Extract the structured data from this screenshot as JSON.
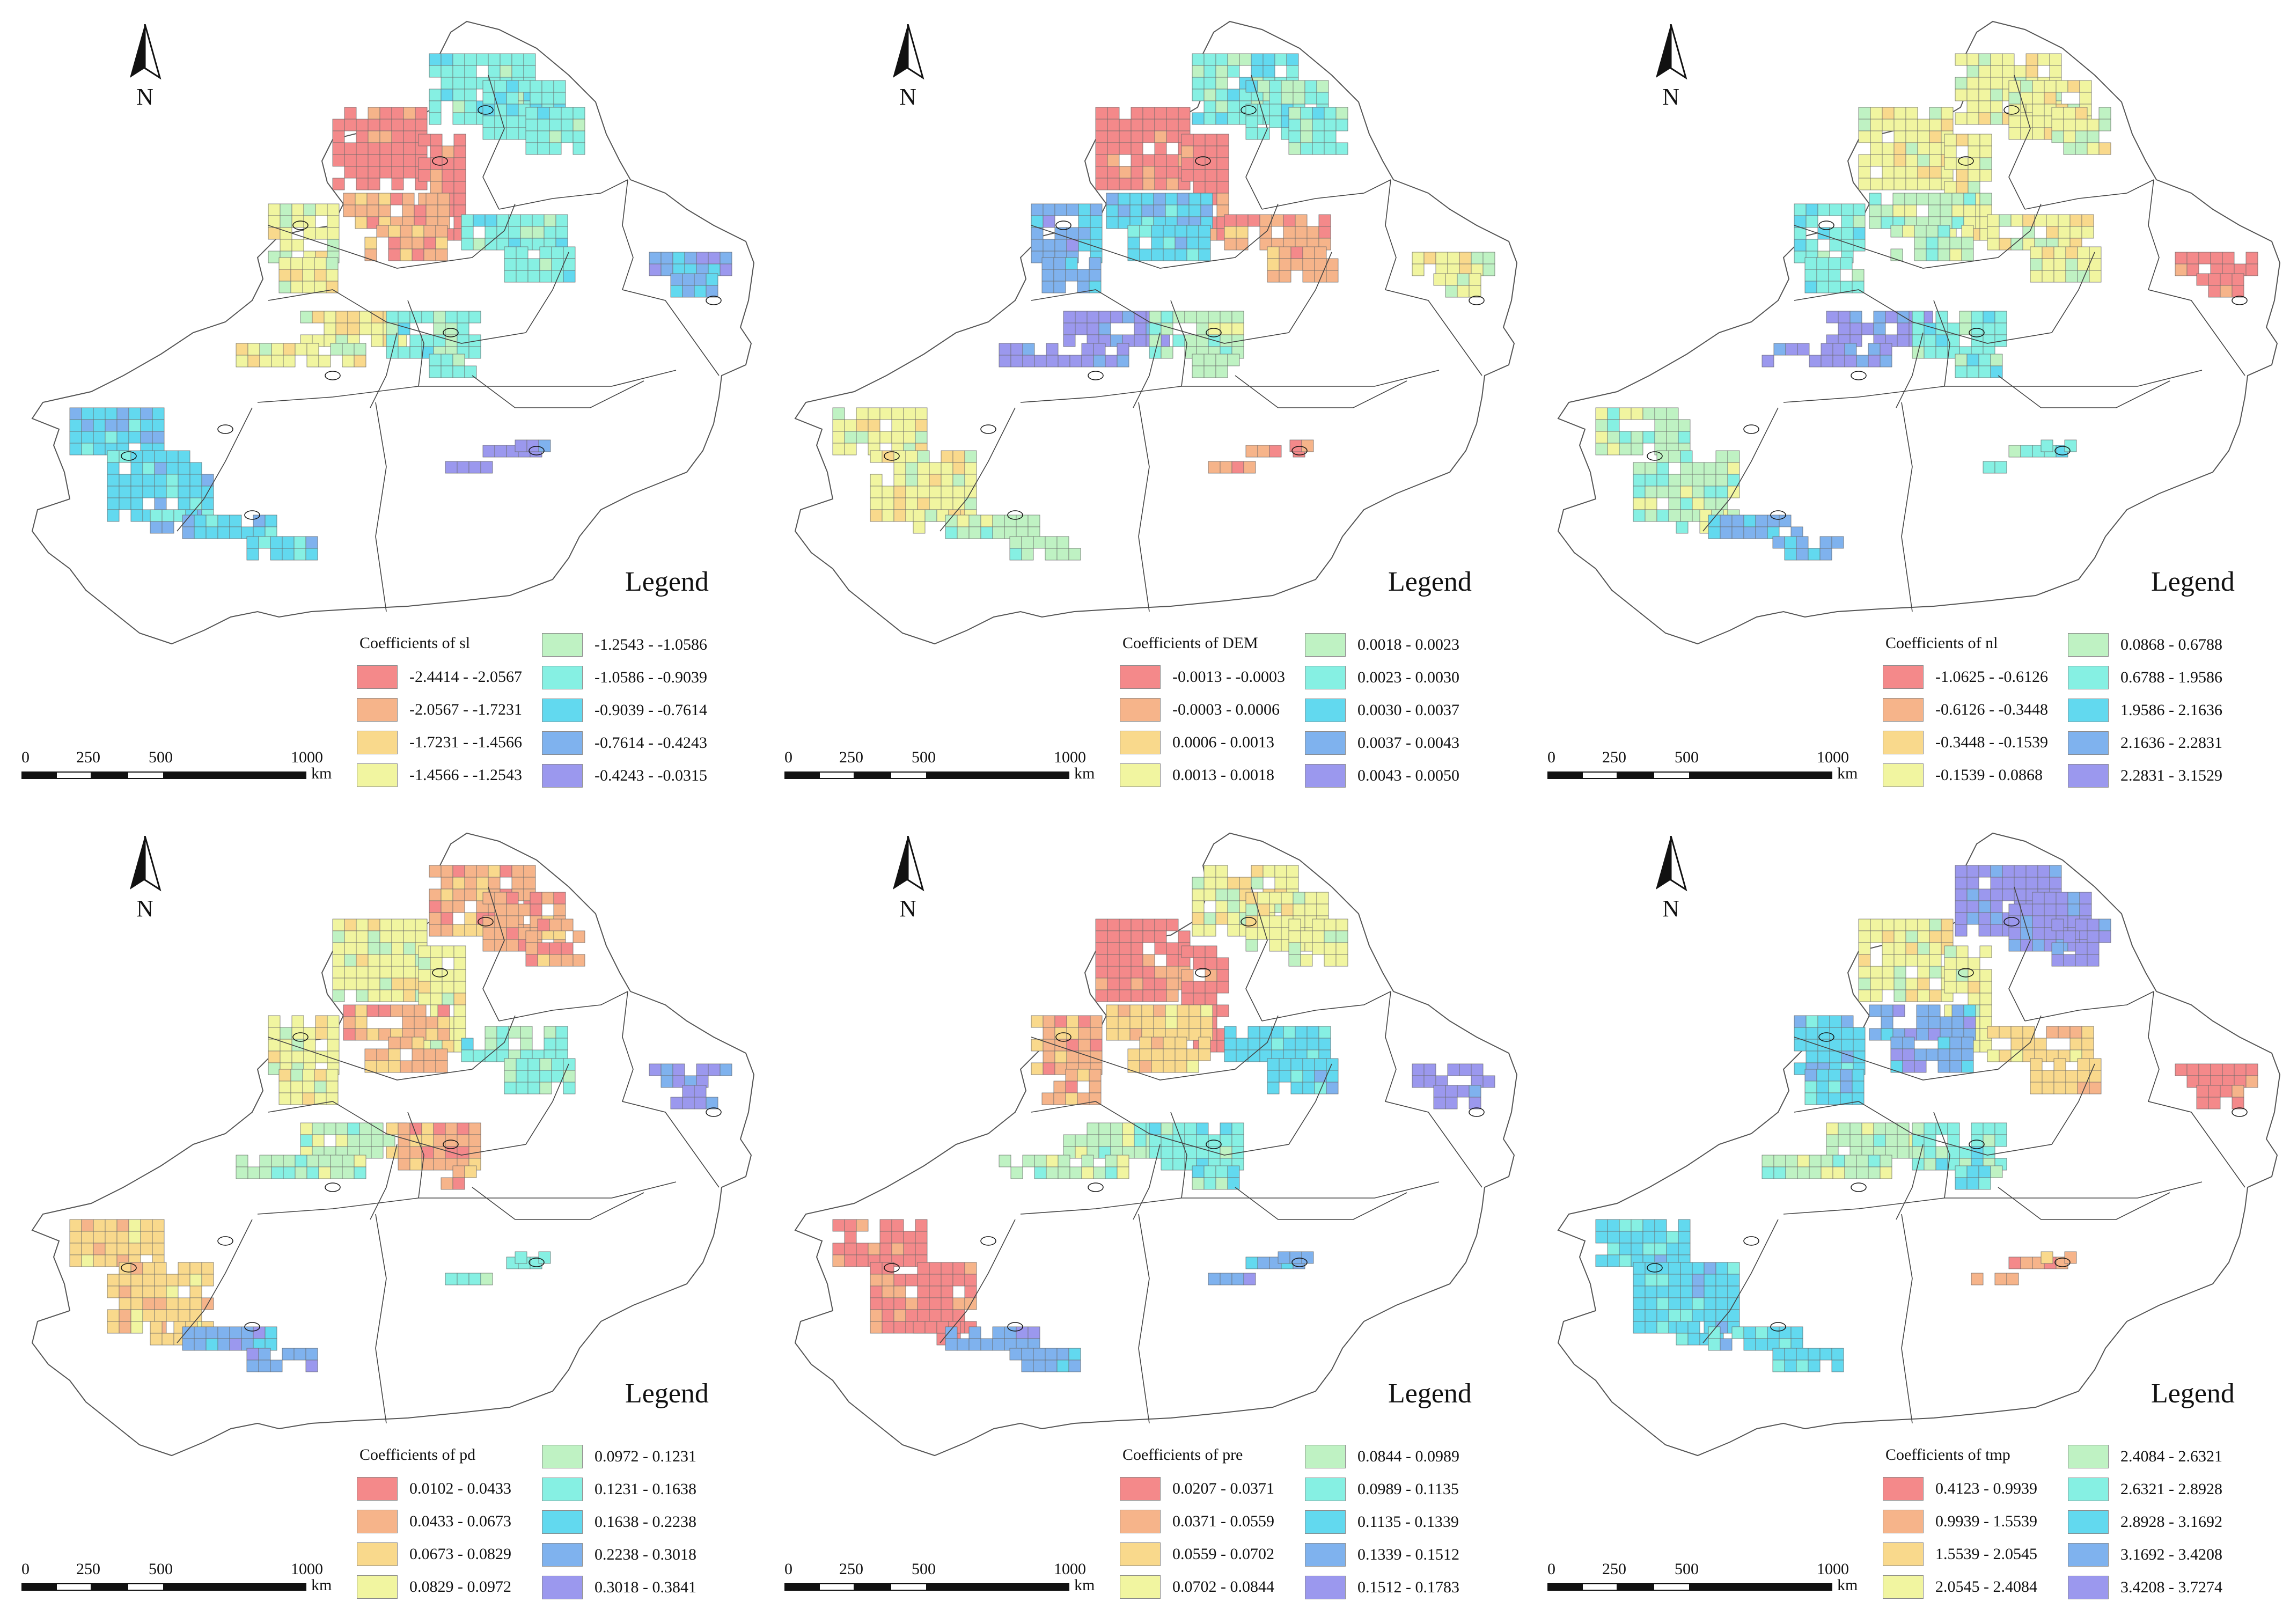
{
  "north_label": "N",
  "legend_word": "Legend",
  "scale": {
    "ticks": [
      "0",
      "250",
      "500",
      "1000"
    ],
    "unit": "km"
  },
  "panels": [
    {
      "variable": "sl",
      "title": "Coefficients of sl",
      "classes": [
        {
          "range": "-2.4414 - -2.0567",
          "color": "#f4898a"
        },
        {
          "range": "-2.0567 - -1.7231",
          "color": "#f6b48a"
        },
        {
          "range": "-1.7231 - -1.4566",
          "color": "#f9d98c"
        },
        {
          "range": "-1.4566 - -1.2543",
          "color": "#f1f5a0"
        },
        {
          "range": "-1.2543 - -1.0586",
          "color": "#bff2c3"
        },
        {
          "range": "-1.0586 - -0.9039",
          "color": "#86f0e3"
        },
        {
          "range": "-0.9039 - -0.7614",
          "color": "#62d9ef"
        },
        {
          "range": "-0.7614 - -0.4243",
          "color": "#7fb2ee"
        },
        {
          "range": "-0.4243 - -0.0315",
          "color": "#9b98ee"
        }
      ]
    },
    {
      "variable": "DEM",
      "title": "Coefficients of DEM",
      "classes": [
        {
          "range": "-0.0013 - -0.0003",
          "color": "#f4898a"
        },
        {
          "range": "-0.0003 - 0.0006",
          "color": "#f6b48a"
        },
        {
          "range": "0.0006 - 0.0013",
          "color": "#f9d98c"
        },
        {
          "range": "0.0013 - 0.0018",
          "color": "#f1f5a0"
        },
        {
          "range": "0.0018 - 0.0023",
          "color": "#bff2c3"
        },
        {
          "range": "0.0023 - 0.0030",
          "color": "#86f0e3"
        },
        {
          "range": "0.0030 - 0.0037",
          "color": "#62d9ef"
        },
        {
          "range": "0.0037 - 0.0043",
          "color": "#7fb2ee"
        },
        {
          "range": "0.0043 - 0.0050",
          "color": "#9b98ee"
        }
      ]
    },
    {
      "variable": "nl",
      "title": "Coefficients of nl",
      "classes": [
        {
          "range": "-1.0625 - -0.6126",
          "color": "#f4898a"
        },
        {
          "range": "-0.6126 - -0.3448",
          "color": "#f6b48a"
        },
        {
          "range": "-0.3448 - -0.1539",
          "color": "#f9d98c"
        },
        {
          "range": "-0.1539 - 0.0868",
          "color": "#f1f5a0"
        },
        {
          "range": "0.0868 - 0.6788",
          "color": "#bff2c3"
        },
        {
          "range": "0.6788 - 1.9586",
          "color": "#86f0e3"
        },
        {
          "range": "1.9586 - 2.1636",
          "color": "#62d9ef"
        },
        {
          "range": "2.1636 - 2.2831",
          "color": "#7fb2ee"
        },
        {
          "range": "2.2831 - 3.1529",
          "color": "#9b98ee"
        }
      ]
    },
    {
      "variable": "pd",
      "title": "Coefficients of pd",
      "classes": [
        {
          "range": "0.0102 - 0.0433",
          "color": "#f4898a"
        },
        {
          "range": "0.0433 - 0.0673",
          "color": "#f6b48a"
        },
        {
          "range": "0.0673 - 0.0829",
          "color": "#f9d98c"
        },
        {
          "range": "0.0829 - 0.0972",
          "color": "#f1f5a0"
        },
        {
          "range": "0.0972 - 0.1231",
          "color": "#bff2c3"
        },
        {
          "range": "0.1231 - 0.1638",
          "color": "#86f0e3"
        },
        {
          "range": "0.1638 - 0.2238",
          "color": "#62d9ef"
        },
        {
          "range": "0.2238 - 0.3018",
          "color": "#7fb2ee"
        },
        {
          "range": "0.3018 - 0.3841",
          "color": "#9b98ee"
        }
      ]
    },
    {
      "variable": "pre",
      "title": "Coefficients of pre",
      "classes": [
        {
          "range": "0.0207 - 0.0371",
          "color": "#f4898a"
        },
        {
          "range": "0.0371 - 0.0559",
          "color": "#f6b48a"
        },
        {
          "range": "0.0559 - 0.0702",
          "color": "#f9d98c"
        },
        {
          "range": "0.0702 - 0.0844",
          "color": "#f1f5a0"
        },
        {
          "range": "0.0844 - 0.0989",
          "color": "#bff2c3"
        },
        {
          "range": "0.0989 - 0.1135",
          "color": "#86f0e3"
        },
        {
          "range": "0.1135 - 0.1339",
          "color": "#62d9ef"
        },
        {
          "range": "0.1339 - 0.1512",
          "color": "#7fb2ee"
        },
        {
          "range": "0.1512 - 0.1783",
          "color": "#9b98ee"
        }
      ]
    },
    {
      "variable": "tmp",
      "title": "Coefficients of tmp",
      "classes": [
        {
          "range": "0.4123 - 0.9939",
          "color": "#f4898a"
        },
        {
          "range": "0.9939 - 1.5539",
          "color": "#f6b48a"
        },
        {
          "range": "1.5539 - 2.0545",
          "color": "#f9d98c"
        },
        {
          "range": "2.0545 - 2.4084",
          "color": "#f1f5a0"
        },
        {
          "range": "2.4084 - 2.6321",
          "color": "#bff2c3"
        },
        {
          "range": "2.6321 - 2.8928",
          "color": "#86f0e3"
        },
        {
          "range": "2.8928 - 3.1692",
          "color": "#62d9ef"
        },
        {
          "range": "3.1692 - 3.4208",
          "color": "#7fb2ee"
        },
        {
          "range": "3.4208 - 3.7274",
          "color": "#9b98ee"
        }
      ]
    }
  ],
  "region_pattern": {
    "northwest": [
      0,
      0,
      3,
      3,
      0,
      3
    ],
    "north": [
      5,
      5,
      3,
      1,
      3,
      8
    ],
    "junggar_west": [
      3,
      7,
      5,
      3,
      1,
      6
    ],
    "central_north": [
      1,
      6,
      4,
      1,
      2,
      7
    ],
    "central_east": [
      5,
      1,
      3,
      5,
      6,
      2
    ],
    "east": [
      7,
      3,
      0,
      8,
      8,
      0
    ],
    "tarim_north": [
      3,
      8,
      8,
      4,
      4,
      4
    ],
    "tarim_central": [
      5,
      4,
      5,
      1,
      5,
      5
    ],
    "southwest": [
      6,
      3,
      4,
      2,
      0,
      6
    ],
    "south": [
      6,
      4,
      7,
      7,
      7,
      6
    ],
    "southeast": [
      8,
      1,
      5,
      5,
      7,
      1
    ]
  }
}
